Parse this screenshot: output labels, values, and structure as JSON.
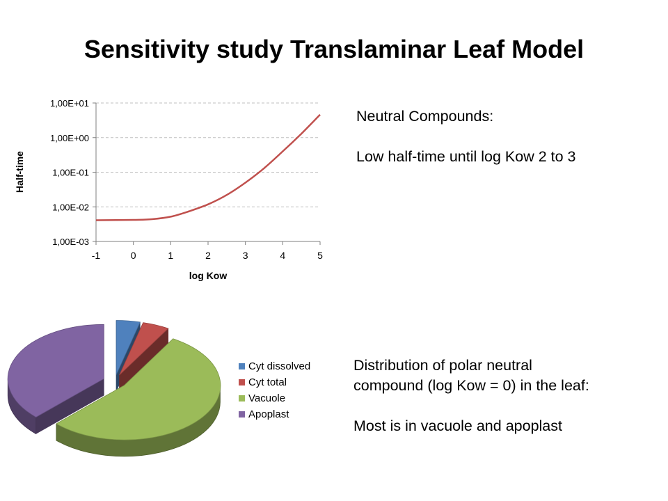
{
  "slide": {
    "title": "Sensitivity study Translaminar Leaf Model"
  },
  "notes": {
    "neutral_heading": "Neutral Compounds:",
    "neutral_body": "Low half-time until log Kow 2 to 3",
    "distribution_line1": "Distribution of polar neutral",
    "distribution_line2": "compound (log Kow = 0) in the leaf:",
    "distribution_body": "Most is in vacuole and apoplast"
  },
  "chart_data": [
    {
      "type": "line",
      "title": "",
      "xlabel": "log Kow",
      "ylabel": "Half-time",
      "x_ticks": [
        "-1",
        "0",
        "1",
        "2",
        "3",
        "4",
        "5"
      ],
      "xlim": [
        -1,
        5
      ],
      "y_ticks": [
        "1,00E-03",
        "1,00E-02",
        "1,00E-01",
        "1,00E+00",
        "1,00E+01"
      ],
      "ylim": [
        0.001,
        10
      ],
      "y_scale": "log",
      "grid": "horizontal dashed",
      "series": [
        {
          "color": "#c0504d",
          "x": [
            -1,
            0,
            0.5,
            1,
            1.5,
            2,
            2.5,
            3,
            3.5,
            4,
            4.5,
            5
          ],
          "y": [
            0.0041,
            0.0042,
            0.0044,
            0.0052,
            0.0075,
            0.0118,
            0.022,
            0.05,
            0.13,
            0.4,
            1.3,
            4.6
          ]
        }
      ]
    },
    {
      "type": "pie",
      "style": "3d exploded",
      "legend_position": "right",
      "labels": [
        "Cyt dissolved",
        "Cyt total",
        "Vacuole",
        "Apoplast"
      ],
      "values": [
        4,
        4.5,
        54,
        37.5
      ],
      "colors": [
        "#4f81bd",
        "#c0504d",
        "#9bbb59",
        "#8064a2"
      ]
    }
  ]
}
